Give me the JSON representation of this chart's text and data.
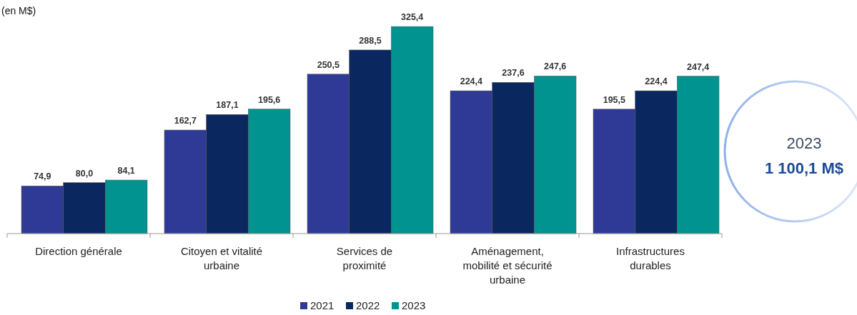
{
  "chart_data": {
    "type": "bar",
    "subtitle": "(en M$)",
    "categories": [
      "Direction générale",
      "Citoyen et vitalité urbaine",
      "Services de proximité",
      "Aménagement, mobilité et sécurité urbaine",
      "Infrastructures durables"
    ],
    "series": [
      {
        "name": "2021",
        "color": "#2e3a96",
        "values": [
          74.9,
          162.7,
          250.5,
          224.4,
          195.5
        ],
        "value_labels": [
          "74,9",
          "162,7",
          "250,5",
          "224,4",
          "195,5"
        ]
      },
      {
        "name": "2022",
        "color": "#0b2760",
        "values": [
          80.0,
          187.1,
          288.5,
          237.6,
          224.4
        ],
        "value_labels": [
          "80,0",
          "187,1",
          "288,5",
          "237,6",
          "224,4"
        ]
      },
      {
        "name": "2023",
        "color": "#00938f",
        "values": [
          84.1,
          195.6,
          325.4,
          247.6,
          247.4
        ],
        "value_labels": [
          "84,1",
          "195,6",
          "325,4",
          "247,6",
          "247,4"
        ]
      }
    ],
    "legend": "bottom",
    "annotations": [
      "2023",
      "1 100,1 M$"
    ]
  }
}
